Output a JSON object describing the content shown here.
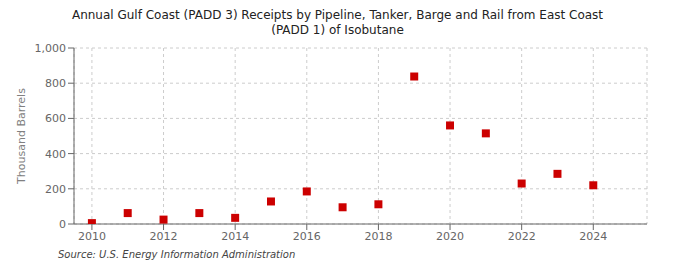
{
  "chart_data": {
    "type": "scatter",
    "title": "Annual Gulf Coast (PADD 3) Receipts by Pipeline, Tanker, Barge and Rail from East Coast\n(PADD 1) of Isobutane",
    "ylabel": "Thousand Barrels",
    "annotations": [
      "Source: U.S. Energy Information Administration"
    ],
    "x": [
      2010,
      2011,
      2012,
      2013,
      2014,
      2015,
      2016,
      2017,
      2018,
      2019,
      2020,
      2021,
      2022,
      2023,
      2024
    ],
    "values": [
      5,
      62,
      25,
      62,
      35,
      128,
      185,
      95,
      112,
      838,
      560,
      515,
      230,
      285,
      220
    ],
    "color": "#cc0000",
    "marker": "square",
    "xlim": [
      2009.5,
      2025.5
    ],
    "xticks": [
      2010,
      2012,
      2014,
      2016,
      2018,
      2020,
      2022,
      2024
    ],
    "ylim": [
      0,
      1000
    ],
    "yticks": [
      0,
      200,
      400,
      600,
      800,
      {
        "value": 1000,
        "label": "1,000"
      }
    ],
    "grid": true
  }
}
